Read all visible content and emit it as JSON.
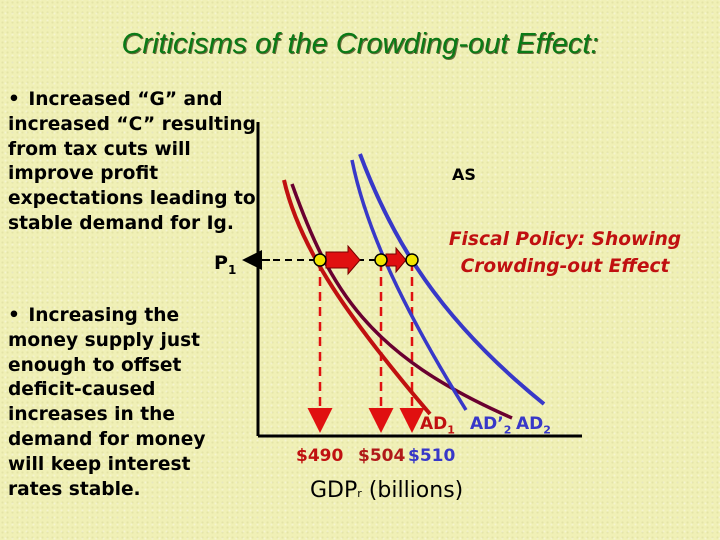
{
  "title": "Criticisms of the Crowding-out Effect:",
  "bullets": [
    {
      "marker": "•",
      "text": "Increased “G” and increased “C” resulting from tax cuts will improve profit expectations leading to stable demand for Ig."
    },
    {
      "marker": "•",
      "text": "Increasing the money supply just enough to offset deficit-caused increases in the demand for money will keep interest rates stable."
    }
  ],
  "diagram": {
    "price_label": "P",
    "price_label_sub": "1",
    "as_label": "AS",
    "caption_line1": "Fiscal Policy: Showing",
    "caption_line2": "Crowding-out Effect",
    "curves": [
      {
        "label": "AD",
        "sub": "1",
        "color": "#c01010"
      },
      {
        "label": "AD’",
        "sub": "2",
        "color": "#3838c8"
      },
      {
        "label": "AD",
        "sub": "2",
        "color": "#3838c8"
      }
    ],
    "gdp_values": [
      "$490",
      "$504",
      "$510"
    ],
    "x_axis_title_main": "GDP",
    "x_axis_title_sub": "r",
    "x_axis_title_rest": " (billions)"
  },
  "colors": {
    "background": "#f0f0b6",
    "title": "#0a7a16",
    "ad1": "#c01010",
    "ad2": "#3838c8",
    "as": "#6a0030",
    "arrow": "#e01010",
    "point": "#f2e600"
  }
}
